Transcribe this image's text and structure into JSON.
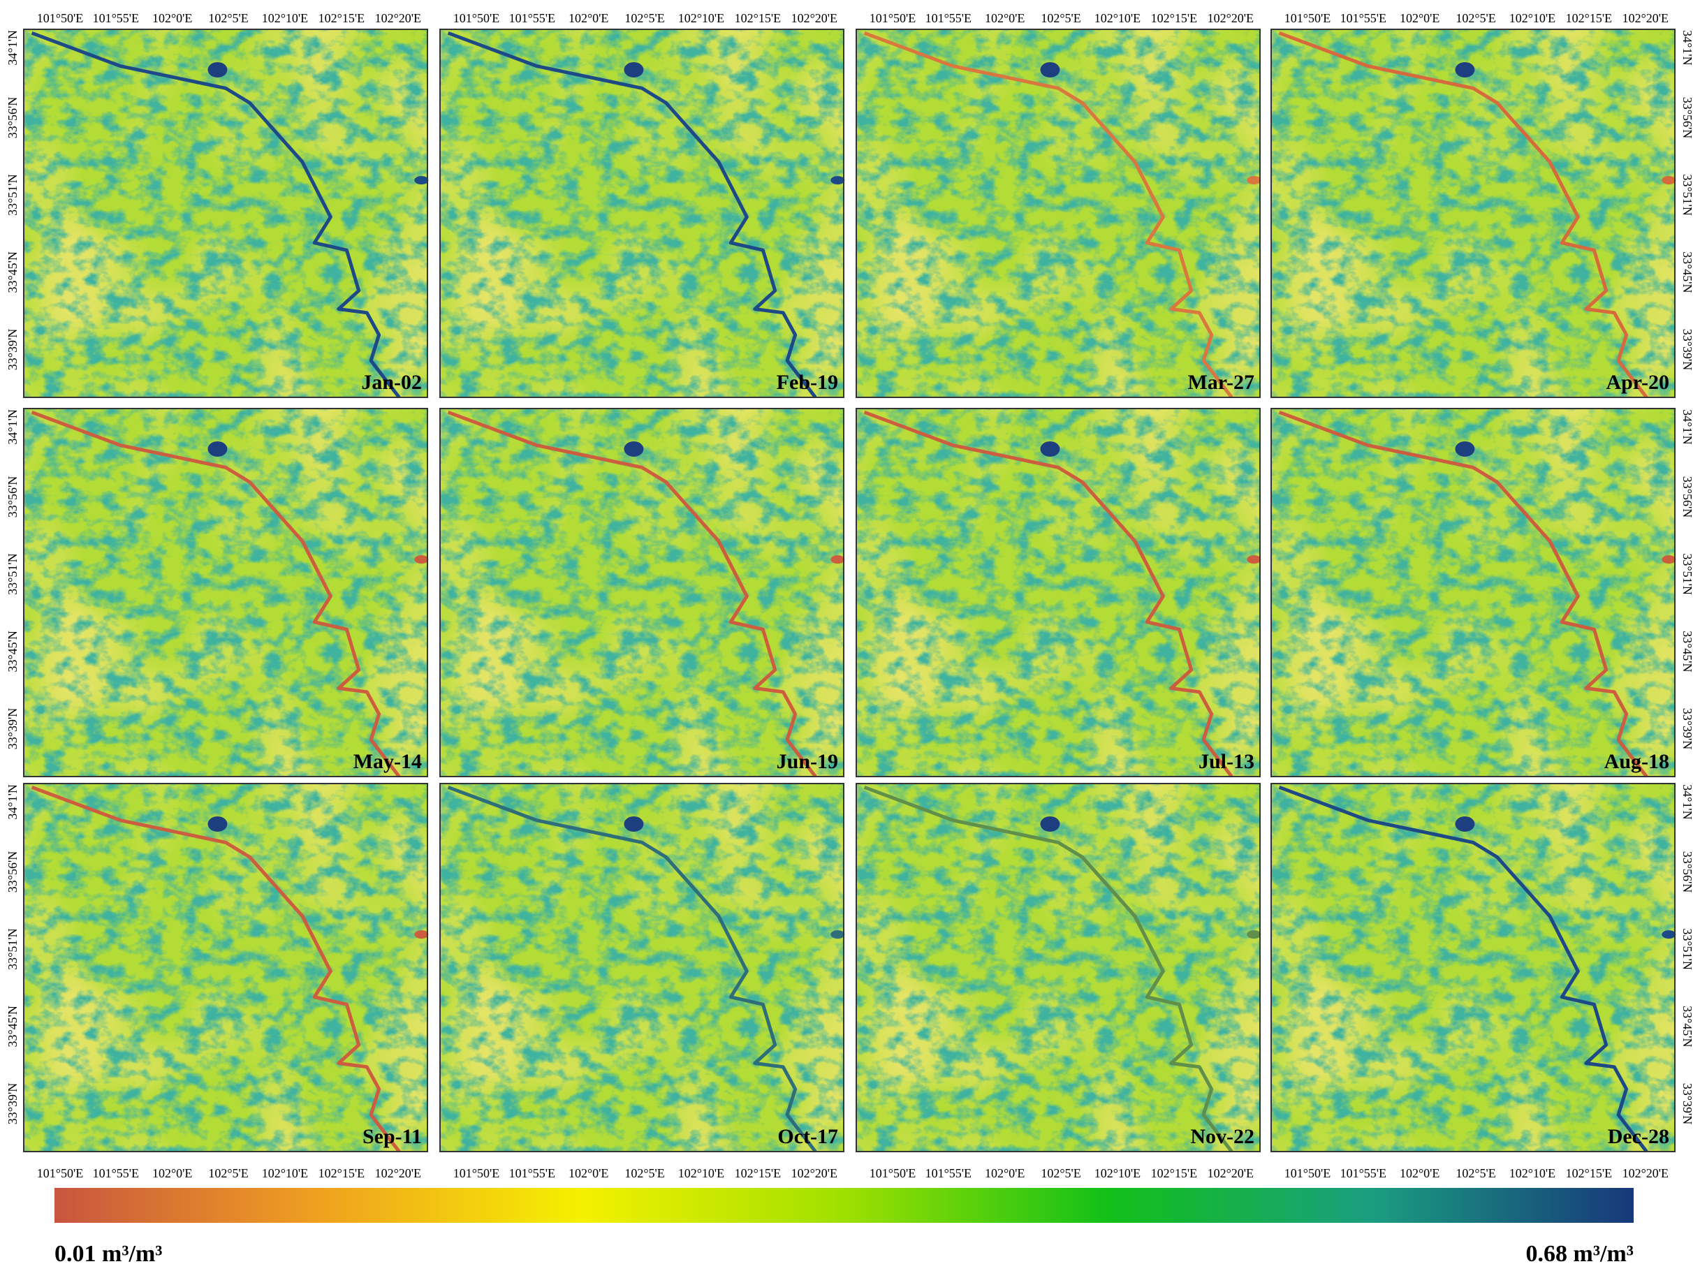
{
  "panels": [
    {
      "label": "Jan-02",
      "river_color": "#1d4a86"
    },
    {
      "label": "Feb-19",
      "river_color": "#1d4a86"
    },
    {
      "label": "Mar-27",
      "river_color": "#d9773f"
    },
    {
      "label": "Apr-20",
      "river_color": "#d66a3c"
    },
    {
      "label": "May-14",
      "river_color": "#cc5d3f"
    },
    {
      "label": "Jun-19",
      "river_color": "#cc5d3f"
    },
    {
      "label": "Jul-13",
      "river_color": "#cc5d3f"
    },
    {
      "label": "Aug-18",
      "river_color": "#cc5d3f"
    },
    {
      "label": "Sep-11",
      "river_color": "#cc5d3f"
    },
    {
      "label": "Oct-17",
      "river_color": "#2e6e7a"
    },
    {
      "label": "Nov-22",
      "river_color": "#5f8f4a"
    },
    {
      "label": "Dec-28",
      "river_color": "#1d4a86"
    }
  ],
  "lon_labels": [
    "101°50'E",
    "101°55'E",
    "102°0'E",
    "102°5'E",
    "102°10'E",
    "102°15'E",
    "102°20'E"
  ],
  "lat_labels": [
    "34°1'N",
    "33°56'N",
    "33°51'N",
    "33°45'N",
    "33°39'N"
  ],
  "colorbar": {
    "min_label": "0.01 m³/m³",
    "max_label": "0.68 m³/m³",
    "colors": [
      "#c8553f",
      "#f0a020",
      "#f5f000",
      "#9ee000",
      "#12c018",
      "#1a9e80",
      "#17387a"
    ]
  }
}
